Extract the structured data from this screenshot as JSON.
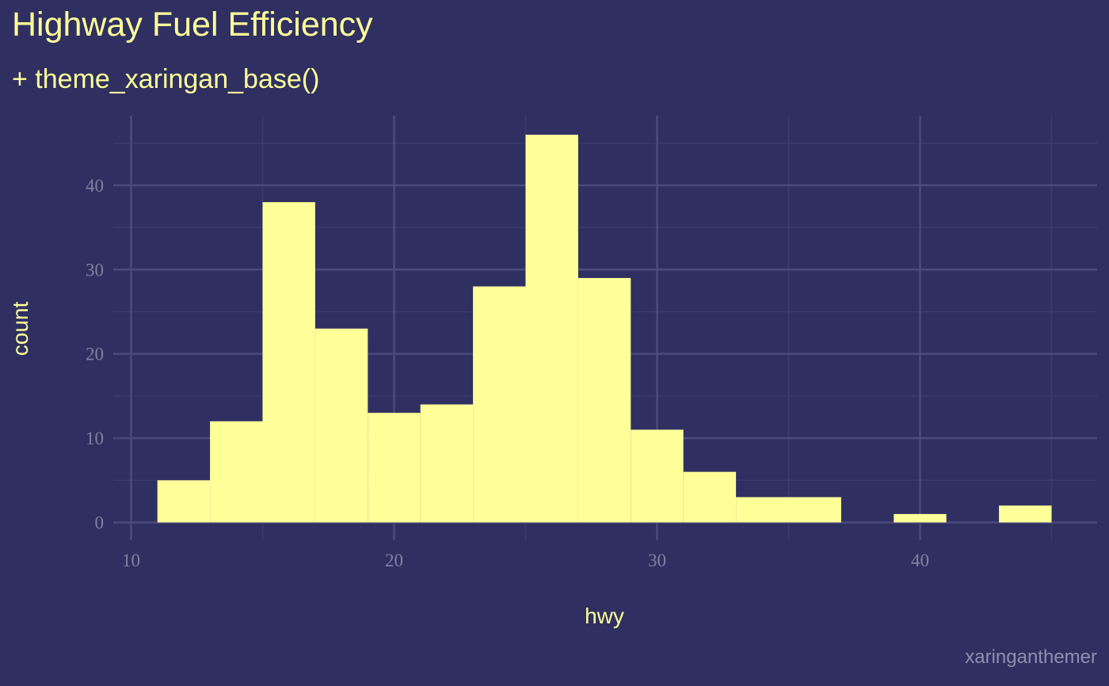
{
  "chart_data": {
    "type": "bar",
    "title": "Highway Fuel Efficiency",
    "subtitle": "+ theme_xaringan_base()",
    "xlabel": "hwy",
    "ylabel": "count",
    "caption": "xaringanthemer",
    "xlim": [
      10,
      46
    ],
    "ylim": [
      0,
      46
    ],
    "x_ticks": [
      10,
      20,
      30,
      40
    ],
    "y_ticks": [
      0,
      10,
      20,
      30,
      40
    ],
    "grid": true,
    "bins": [
      {
        "start": 11,
        "end": 13,
        "count": 5
      },
      {
        "start": 13,
        "end": 15,
        "count": 12
      },
      {
        "start": 15,
        "end": 17,
        "count": 38
      },
      {
        "start": 17,
        "end": 19,
        "count": 23
      },
      {
        "start": 19,
        "end": 21,
        "count": 13
      },
      {
        "start": 21,
        "end": 23,
        "count": 14
      },
      {
        "start": 23,
        "end": 25,
        "count": 28
      },
      {
        "start": 25,
        "end": 27,
        "count": 46
      },
      {
        "start": 27,
        "end": 29,
        "count": 29
      },
      {
        "start": 29,
        "end": 31,
        "count": 11
      },
      {
        "start": 31,
        "end": 33,
        "count": 6
      },
      {
        "start": 33,
        "end": 35,
        "count": 3
      },
      {
        "start": 35,
        "end": 37,
        "count": 3
      },
      {
        "start": 37,
        "end": 39,
        "count": 0
      },
      {
        "start": 39,
        "end": 41,
        "count": 1
      },
      {
        "start": 41,
        "end": 43,
        "count": 0
      },
      {
        "start": 43,
        "end": 45,
        "count": 2
      }
    ]
  },
  "colors": {
    "background": "#2f3061",
    "bar_fill": "#ffff99",
    "text": "#ffff99",
    "tick_text": "#7f81a5",
    "grid_major": "#4a4b7a",
    "grid_minor": "#3a3b6c",
    "caption": "#8e8faf"
  }
}
